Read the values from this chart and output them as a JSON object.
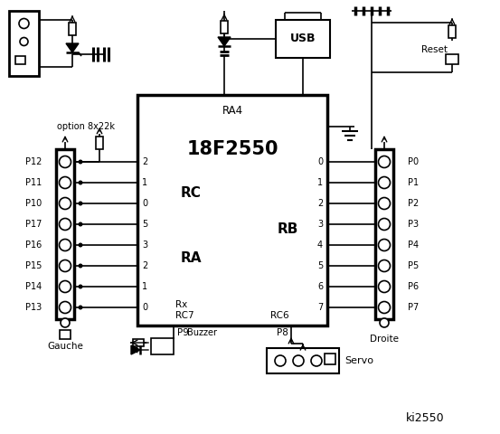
{
  "bg_color": "#ffffff",
  "ic_label_top": "RA4",
  "ic_label_main": "18F2550",
  "ic_label_rc": "RC",
  "ic_label_ra": "RA",
  "ic_label_rb": "RB",
  "ic_label_rx": "Rx",
  "ic_label_rc7": "RC7",
  "ic_label_rc6": "RC6",
  "left_connector_label": "Gauche",
  "right_connector_label": "Droite",
  "option_label": "option 8x22k",
  "usb_label": "USB",
  "reset_label": "Reset",
  "buzzer_label": "Buzzer",
  "servo_label": "Servo",
  "ki_label": "ki2550",
  "left_pins": [
    "P12",
    "P11",
    "P10",
    "P17",
    "P16",
    "P15",
    "P14",
    "P13"
  ],
  "left_rc_nums": [
    "2",
    "1",
    "0",
    "5",
    "3",
    "2",
    "1",
    "0"
  ],
  "right_rb_nums": [
    "0",
    "1",
    "2",
    "3",
    "4",
    "5",
    "6",
    "7"
  ],
  "right_pins": [
    "P0",
    "P1",
    "P2",
    "P3",
    "P4",
    "P5",
    "P6",
    "P7"
  ],
  "p8_label": "P8",
  "p9_label": "P9"
}
